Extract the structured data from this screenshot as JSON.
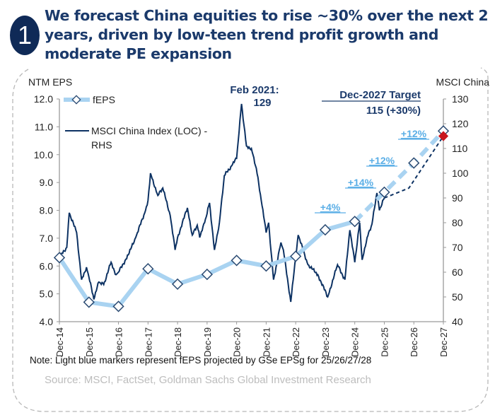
{
  "badge": "1",
  "title": "We forecast China equities to rise ~30% over the next 2 years, driven by low-teen trend profit growth and moderate PE expansion",
  "chart_data": {
    "type": "line",
    "left_axis_label": "NTM EPS",
    "right_axis_label": "MSCI China",
    "ylim_left": [
      4.0,
      12.0
    ],
    "ylim_right": [
      40,
      130
    ],
    "left_ticks": [
      "4.0",
      "5.0",
      "6.0",
      "7.0",
      "8.0",
      "9.0",
      "10.0",
      "11.0",
      "12.0"
    ],
    "right_ticks": [
      "40",
      "50",
      "60",
      "70",
      "80",
      "90",
      "100",
      "110",
      "120",
      "130"
    ],
    "x_ticks": [
      "Dec-14",
      "Dec-15",
      "Dec-16",
      "Dec-17",
      "Dec-18",
      "Dec-19",
      "Dec-20",
      "Dec-21",
      "Dec-22",
      "Dec-23",
      "Dec-24",
      "Dec-25",
      "Dec-26",
      "Dec-27"
    ],
    "grid": false,
    "legend_placement": "top-left",
    "series": [
      {
        "name": "fEPS",
        "axis": "left",
        "color": "#a9d3f1",
        "x": [
          "Dec-14",
          "Dec-15",
          "Dec-16",
          "Dec-17",
          "Dec-18",
          "Dec-19",
          "Dec-20",
          "Dec-21",
          "Dec-22",
          "Dec-23",
          "Dec-24",
          "Dec-25",
          "Dec-26",
          "Dec-27"
        ],
        "values": [
          6.3,
          4.7,
          4.55,
          5.9,
          5.35,
          5.7,
          6.2,
          6.0,
          6.35,
          7.3,
          7.6,
          8.65,
          9.7,
          10.85
        ],
        "projected_from": "Dec-24"
      },
      {
        "name": "MSCI China Index (LOC) - RHS",
        "axis": "right",
        "color": "#0d3263",
        "x": [
          "Dec-14",
          "Mar-15",
          "Apr-15",
          "Jul-15",
          "Sep-15",
          "Nov-15",
          "Dec-15",
          "Feb-16",
          "Apr-16",
          "Jun-16",
          "Sep-16",
          "Nov-16",
          "Dec-16",
          "Apr-17",
          "Jul-17",
          "Nov-17",
          "Dec-17",
          "Jan-18",
          "Apr-18",
          "Jun-18",
          "Sep-18",
          "Nov-18",
          "Dec-18",
          "Apr-19",
          "Jun-19",
          "Aug-19",
          "Sep-19",
          "Nov-19",
          "Jan-20",
          "Mar-20",
          "May-20",
          "Jul-20",
          "Oct-20",
          "Dec-20",
          "Feb-21",
          "Apr-21",
          "Jun-21",
          "Aug-21",
          "Oct-21",
          "Dec-21",
          "Jan-22",
          "Mar-22",
          "Jun-22",
          "Jul-22",
          "Oct-22",
          "Jan-23",
          "May-23",
          "Sep-23",
          "Jan-24",
          "May-24",
          "Aug-24",
          "Oct-24",
          "Dec-24",
          "Feb-25",
          "Mar-25",
          "May-25",
          "Jul-25",
          "Sep-25",
          "Oct-25",
          "Dec-25"
        ],
        "values": [
          66,
          70,
          84,
          76,
          57,
          62,
          58,
          49,
          56,
          55,
          64,
          59,
          60,
          67,
          74,
          85,
          89,
          100,
          91,
          94,
          83,
          69,
          74,
          86,
          75,
          79,
          74,
          80,
          88,
          69,
          80,
          99,
          103,
          106,
          128,
          111,
          110,
          102,
          89,
          76,
          80,
          57,
          72,
          69,
          48,
          75,
          63,
          59,
          50,
          63,
          57,
          77,
          64,
          80,
          65,
          74,
          79.5,
          92,
          85,
          90
        ]
      },
      {
        "name": "Projection",
        "axis": "right",
        "style": "dashed",
        "color": "#0d3263",
        "x": [
          "Dec-25",
          "Oct-26",
          "Dec-27"
        ],
        "values": [
          90,
          94,
          115
        ]
      }
    ],
    "target": {
      "x": "Dec-27",
      "value": 115,
      "color": "#c8161d"
    },
    "growth_labels": [
      "+4%",
      "+14%",
      "+12%",
      "+12%"
    ],
    "annotations": {
      "peak_line1": "Feb 2021:",
      "peak_line2": "129",
      "target_line1": "Dec-2027 Target",
      "target_line2": "115 (+30%)"
    }
  },
  "note": "Note: Light blue markers represent fEPS projected by GSe EPSg for 25/26/27/28",
  "source": "Source: MSCI, FactSet, Goldman Sachs Global Investment Research"
}
